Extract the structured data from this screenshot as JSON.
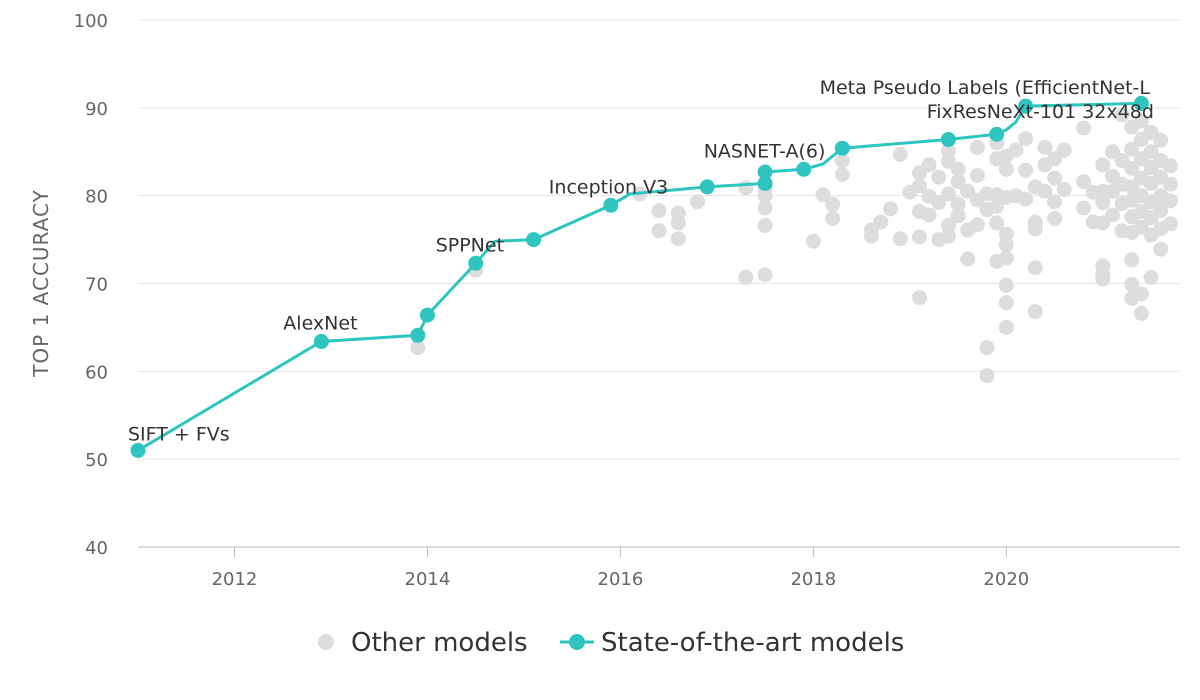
{
  "chart_data": {
    "type": "scatter",
    "title": "",
    "xlabel": "",
    "ylabel": "TOP 1 ACCURACY",
    "xlim": [
      2011.0,
      2021.8
    ],
    "ylim": [
      40,
      100
    ],
    "x_ticks": [
      "2012",
      "2014",
      "2016",
      "2018",
      "2020"
    ],
    "y_ticks": [
      "40",
      "50",
      "60",
      "70",
      "80",
      "90",
      "100"
    ],
    "grid": "horizontal",
    "legend_position": "bottom",
    "colors": {
      "sota": "#2ec4c0",
      "other": "#dddddd"
    },
    "series": [
      {
        "name": "Other models",
        "kind": "scatter",
        "points": [
          [
            2013.9,
            62.7
          ],
          [
            2014.5,
            71.5
          ],
          [
            2016.2,
            80.2
          ],
          [
            2016.4,
            78.3
          ],
          [
            2016.4,
            76.0
          ],
          [
            2016.6,
            78.0
          ],
          [
            2016.6,
            76.9
          ],
          [
            2016.6,
            75.1
          ],
          [
            2016.8,
            79.3
          ],
          [
            2017.3,
            70.7
          ],
          [
            2017.3,
            80.9
          ],
          [
            2017.5,
            80.0
          ],
          [
            2017.5,
            78.6
          ],
          [
            2017.5,
            76.6
          ],
          [
            2017.5,
            71.0
          ],
          [
            2017.5,
            80.8
          ],
          [
            2018.0,
            74.8
          ],
          [
            2018.1,
            80.1
          ],
          [
            2018.2,
            79.0
          ],
          [
            2018.2,
            77.4
          ],
          [
            2018.3,
            82.4
          ],
          [
            2018.3,
            84.0
          ],
          [
            2018.6,
            76.1
          ],
          [
            2018.6,
            75.4
          ],
          [
            2018.7,
            77.0
          ],
          [
            2018.8,
            78.5
          ],
          [
            2018.9,
            84.7
          ],
          [
            2018.9,
            75.1
          ],
          [
            2019.0,
            80.4
          ],
          [
            2019.1,
            82.6
          ],
          [
            2019.1,
            81.1
          ],
          [
            2019.1,
            78.2
          ],
          [
            2019.1,
            75.3
          ],
          [
            2019.1,
            68.4
          ],
          [
            2019.2,
            83.5
          ],
          [
            2019.2,
            79.9
          ],
          [
            2019.2,
            77.8
          ],
          [
            2019.3,
            82.1
          ],
          [
            2019.3,
            75.0
          ],
          [
            2019.3,
            79.2
          ],
          [
            2019.4,
            85.1
          ],
          [
            2019.4,
            83.9
          ],
          [
            2019.4,
            80.2
          ],
          [
            2019.4,
            76.6
          ],
          [
            2019.4,
            75.4
          ],
          [
            2019.5,
            81.6
          ],
          [
            2019.5,
            79.0
          ],
          [
            2019.5,
            77.7
          ],
          [
            2019.5,
            83.0
          ],
          [
            2019.6,
            80.5
          ],
          [
            2019.6,
            76.1
          ],
          [
            2019.6,
            72.8
          ],
          [
            2019.7,
            82.3
          ],
          [
            2019.7,
            79.5
          ],
          [
            2019.7,
            76.7
          ],
          [
            2019.7,
            85.5
          ],
          [
            2019.8,
            80.2
          ],
          [
            2019.8,
            78.4
          ],
          [
            2019.8,
            62.7
          ],
          [
            2019.8,
            59.5
          ],
          [
            2019.9,
            84.2
          ],
          [
            2019.9,
            80.1
          ],
          [
            2019.9,
            78.8
          ],
          [
            2019.9,
            76.9
          ],
          [
            2019.9,
            72.5
          ],
          [
            2019.9,
            86.0
          ],
          [
            2020.0,
            84.5
          ],
          [
            2020.0,
            83.0
          ],
          [
            2020.0,
            79.8
          ],
          [
            2020.0,
            75.6
          ],
          [
            2020.0,
            74.4
          ],
          [
            2020.0,
            72.9
          ],
          [
            2020.0,
            69.8
          ],
          [
            2020.0,
            67.8
          ],
          [
            2020.0,
            65.0
          ],
          [
            2020.1,
            80.0
          ],
          [
            2020.1,
            85.2
          ],
          [
            2020.2,
            86.5
          ],
          [
            2020.2,
            82.9
          ],
          [
            2020.2,
            79.6
          ],
          [
            2020.3,
            81.0
          ],
          [
            2020.3,
            77.0
          ],
          [
            2020.3,
            76.2
          ],
          [
            2020.3,
            71.8
          ],
          [
            2020.3,
            66.8
          ],
          [
            2020.4,
            85.5
          ],
          [
            2020.4,
            83.5
          ],
          [
            2020.4,
            80.5
          ],
          [
            2020.5,
            84.2
          ],
          [
            2020.5,
            82.0
          ],
          [
            2020.5,
            79.3
          ],
          [
            2020.5,
            77.4
          ],
          [
            2020.6,
            85.2
          ],
          [
            2020.6,
            80.7
          ],
          [
            2020.8,
            87.7
          ],
          [
            2020.8,
            81.6
          ],
          [
            2020.8,
            78.6
          ],
          [
            2020.9,
            80.4
          ],
          [
            2020.9,
            77.0
          ],
          [
            2021.0,
            83.5
          ],
          [
            2021.0,
            80.5
          ],
          [
            2021.0,
            79.2
          ],
          [
            2021.0,
            76.9
          ],
          [
            2021.0,
            72.0
          ],
          [
            2021.0,
            71.0
          ],
          [
            2021.0,
            70.5
          ],
          [
            2021.1,
            85.0
          ],
          [
            2021.1,
            82.2
          ],
          [
            2021.1,
            80.5
          ],
          [
            2021.1,
            77.8
          ],
          [
            2021.2,
            84.0
          ],
          [
            2021.2,
            81.3
          ],
          [
            2021.2,
            79.1
          ],
          [
            2021.2,
            89.2
          ],
          [
            2021.2,
            76.0
          ],
          [
            2021.3,
            87.8
          ],
          [
            2021.3,
            85.3
          ],
          [
            2021.3,
            83.1
          ],
          [
            2021.3,
            81.0
          ],
          [
            2021.3,
            79.5
          ],
          [
            2021.3,
            77.6
          ],
          [
            2021.3,
            75.8
          ],
          [
            2021.3,
            72.7
          ],
          [
            2021.3,
            69.9
          ],
          [
            2021.3,
            68.3
          ],
          [
            2021.4,
            88.5
          ],
          [
            2021.4,
            86.4
          ],
          [
            2021.4,
            84.2
          ],
          [
            2021.4,
            82.0
          ],
          [
            2021.4,
            80.0
          ],
          [
            2021.4,
            78.2
          ],
          [
            2021.4,
            76.4
          ],
          [
            2021.4,
            66.6
          ],
          [
            2021.4,
            68.8
          ],
          [
            2021.5,
            87.2
          ],
          [
            2021.5,
            85.0
          ],
          [
            2021.5,
            83.2
          ],
          [
            2021.5,
            81.4
          ],
          [
            2021.5,
            79.3
          ],
          [
            2021.5,
            77.5
          ],
          [
            2021.5,
            75.5
          ],
          [
            2021.5,
            70.7
          ],
          [
            2021.6,
            86.3
          ],
          [
            2021.6,
            84.0
          ],
          [
            2021.6,
            82.1
          ],
          [
            2021.6,
            80.0
          ],
          [
            2021.6,
            78.3
          ],
          [
            2021.6,
            76.2
          ],
          [
            2021.6,
            73.9
          ],
          [
            2021.7,
            83.4
          ],
          [
            2021.7,
            81.3
          ],
          [
            2021.7,
            79.4
          ],
          [
            2021.7,
            76.8
          ]
        ]
      },
      {
        "name": "State-of-the-art models",
        "kind": "line",
        "points": [
          [
            2011.0,
            51.0
          ],
          [
            2012.9,
            63.4
          ],
          [
            2013.9,
            64.1
          ],
          [
            2014.0,
            66.4
          ],
          [
            2014.5,
            72.3
          ],
          [
            2014.7,
            74.8
          ],
          [
            2015.1,
            75.0
          ],
          [
            2015.9,
            78.9
          ],
          [
            2016.1,
            80.2
          ],
          [
            2016.9,
            81.0
          ],
          [
            2017.5,
            81.4
          ],
          [
            2017.5,
            82.7
          ],
          [
            2017.9,
            83.0
          ],
          [
            2018.1,
            83.6
          ],
          [
            2018.3,
            85.4
          ],
          [
            2019.4,
            86.4
          ],
          [
            2019.9,
            87.0
          ],
          [
            2020.0,
            87.5
          ],
          [
            2020.1,
            88.4
          ],
          [
            2020.2,
            90.2
          ],
          [
            2021.4,
            90.5
          ]
        ],
        "marker_indices": [
          0,
          1,
          2,
          3,
          4,
          6,
          7,
          9,
          10,
          11,
          12,
          14,
          15,
          16,
          19,
          20
        ]
      }
    ],
    "annotations": [
      {
        "text": "SIFT + FVs",
        "x": 2011.0,
        "y": 51.0
      },
      {
        "text": "AlexNet",
        "x": 2012.9,
        "y": 63.4
      },
      {
        "text": "SPPNet",
        "x": 2014.5,
        "y": 72.3
      },
      {
        "text": "Inception V3",
        "x": 2015.9,
        "y": 78.9
      },
      {
        "text": "NASNET-A(6)",
        "x": 2017.9,
        "y": 83.0
      },
      {
        "text": "FixResNeXt-101 32x48d",
        "x": 2019.9,
        "y": 87.0
      },
      {
        "text": "Meta Pseudo Labels (EfficientNet-L",
        "x": 2020.2,
        "y": 90.2
      }
    ]
  }
}
